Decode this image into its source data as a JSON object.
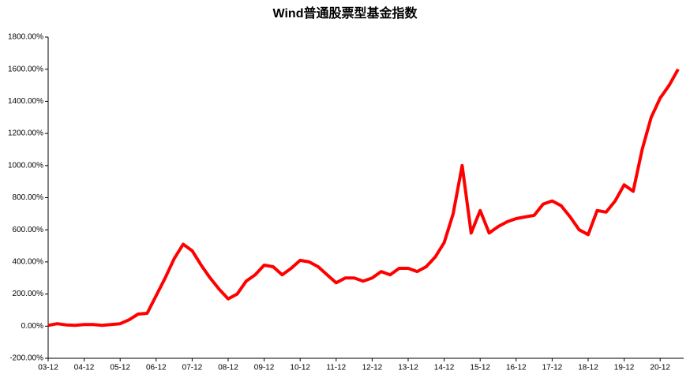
{
  "chart_data": {
    "type": "line",
    "title": "Wind普通股票型基金指数",
    "categories": [
      "03-12",
      null,
      null,
      null,
      "04-12",
      null,
      null,
      null,
      "05-12",
      null,
      null,
      null,
      "06-12",
      null,
      null,
      null,
      "07-12",
      null,
      null,
      null,
      "08-12",
      null,
      null,
      null,
      "09-12",
      null,
      null,
      null,
      "10-12",
      null,
      null,
      null,
      "11-12",
      null,
      null,
      null,
      "12-12",
      null,
      null,
      null,
      "13-12",
      null,
      null,
      null,
      "14-12",
      null,
      null,
      null,
      "15-12",
      null,
      null,
      null,
      "16-12",
      null,
      null,
      null,
      "17-12",
      null,
      null,
      null,
      "18-12",
      null,
      null,
      null,
      "19-12",
      null,
      null,
      null,
      "20-12",
      null,
      null
    ],
    "values": [
      5,
      15,
      8,
      5,
      10,
      10,
      5,
      10,
      15,
      40,
      75,
      80,
      190,
      300,
      420,
      510,
      470,
      380,
      300,
      230,
      170,
      200,
      280,
      320,
      380,
      370,
      320,
      360,
      410,
      400,
      370,
      320,
      270,
      300,
      300,
      280,
      300,
      340,
      320,
      360,
      360,
      340,
      370,
      430,
      520,
      700,
      1000,
      580,
      720,
      580,
      620,
      650,
      670,
      680,
      690,
      760,
      780,
      750,
      680,
      600,
      570,
      720,
      710,
      780,
      880,
      840,
      1100,
      1300,
      1420,
      1500,
      1600
    ],
    "color": "#ff0000",
    "ylim": [
      -200,
      1800
    ],
    "yticks": [
      {
        "value": -200,
        "label": "-200.00%"
      },
      {
        "value": 0,
        "label": "0.00%"
      },
      {
        "value": 200,
        "label": "200.00%"
      },
      {
        "value": 400,
        "label": "400.00%"
      },
      {
        "value": 600,
        "label": "600.00%"
      },
      {
        "value": 800,
        "label": "800.00%"
      },
      {
        "value": 1000,
        "label": "1000.00%"
      },
      {
        "value": 1200,
        "label": "1200.00%"
      },
      {
        "value": 1400,
        "label": "1400.00%"
      },
      {
        "value": 1600,
        "label": "1600.00%"
      },
      {
        "value": 1800,
        "label": "1800.00%"
      }
    ],
    "grid": false
  }
}
